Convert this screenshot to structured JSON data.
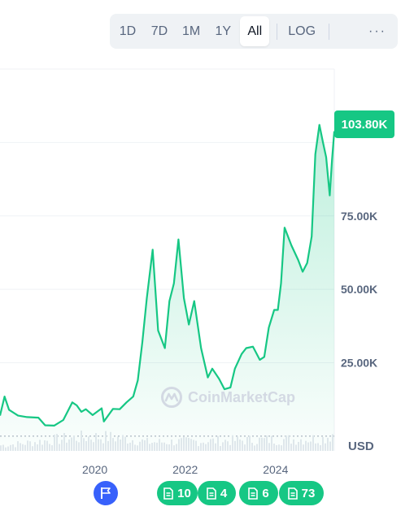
{
  "toolbar": {
    "ranges": [
      "1D",
      "7D",
      "1M",
      "1Y",
      "All"
    ],
    "active": "All",
    "log_label": "LOG",
    "more_label": "···"
  },
  "price_badge": "103.80K",
  "currency_label": "USD",
  "watermark": "CoinMarketCap",
  "colors": {
    "line": "#16c784",
    "badge": "#16c784",
    "flag": "#3861fb",
    "volume": "#e4e8ee"
  },
  "chart_data": {
    "type": "area",
    "title": "",
    "xlabel": "",
    "ylabel": "",
    "x_ticks": [
      "2020",
      "2022",
      "2024"
    ],
    "y_ticks": [
      "25.00K",
      "50.00K",
      "75.00K"
    ],
    "x_range": [
      2017.9,
      2025.3
    ],
    "y_range": [
      -5000,
      125000
    ],
    "log_scale": false,
    "grid": true,
    "series": [
      {
        "points": [
          [
            2017.9,
            7000
          ],
          [
            2018.0,
            13500
          ],
          [
            2018.1,
            9000
          ],
          [
            2018.3,
            7000
          ],
          [
            2018.5,
            6500
          ],
          [
            2018.75,
            6300
          ],
          [
            2018.9,
            3700
          ],
          [
            2019.1,
            3600
          ],
          [
            2019.3,
            5500
          ],
          [
            2019.5,
            11500
          ],
          [
            2019.6,
            10500
          ],
          [
            2019.7,
            8300
          ],
          [
            2019.8,
            9200
          ],
          [
            2019.95,
            7200
          ],
          [
            2020.15,
            9500
          ],
          [
            2020.2,
            5000
          ],
          [
            2020.4,
            9300
          ],
          [
            2020.55,
            9200
          ],
          [
            2020.7,
            11500
          ],
          [
            2020.85,
            13500
          ],
          [
            2020.95,
            19000
          ],
          [
            2021.05,
            32000
          ],
          [
            2021.15,
            47000
          ],
          [
            2021.28,
            63500
          ],
          [
            2021.4,
            36000
          ],
          [
            2021.55,
            30000
          ],
          [
            2021.65,
            46000
          ],
          [
            2021.75,
            52000
          ],
          [
            2021.85,
            67000
          ],
          [
            2021.97,
            47000
          ],
          [
            2022.08,
            38000
          ],
          [
            2022.2,
            46000
          ],
          [
            2022.35,
            30000
          ],
          [
            2022.5,
            20000
          ],
          [
            2022.6,
            23000
          ],
          [
            2022.75,
            19500
          ],
          [
            2022.87,
            16000
          ],
          [
            2023.0,
            16600
          ],
          [
            2023.1,
            23000
          ],
          [
            2023.25,
            28000
          ],
          [
            2023.35,
            30000
          ],
          [
            2023.5,
            30500
          ],
          [
            2023.65,
            26000
          ],
          [
            2023.75,
            27000
          ],
          [
            2023.85,
            37000
          ],
          [
            2023.97,
            43000
          ],
          [
            2024.05,
            43000
          ],
          [
            2024.12,
            52000
          ],
          [
            2024.2,
            71000
          ],
          [
            2024.35,
            65000
          ],
          [
            2024.5,
            60000
          ],
          [
            2024.6,
            56000
          ],
          [
            2024.7,
            59000
          ],
          [
            2024.8,
            68000
          ],
          [
            2024.88,
            96000
          ],
          [
            2024.97,
            106000
          ],
          [
            2025.05,
            100000
          ],
          [
            2025.12,
            95000
          ],
          [
            2025.2,
            82000
          ],
          [
            2025.25,
            94000
          ],
          [
            2025.3,
            103800
          ]
        ]
      }
    ]
  },
  "events": [
    {
      "type": "flag",
      "label": ""
    },
    {
      "type": "news",
      "label": "10"
    },
    {
      "type": "news",
      "label": "4"
    },
    {
      "type": "news",
      "label": "6"
    },
    {
      "type": "news",
      "label": "73"
    }
  ]
}
